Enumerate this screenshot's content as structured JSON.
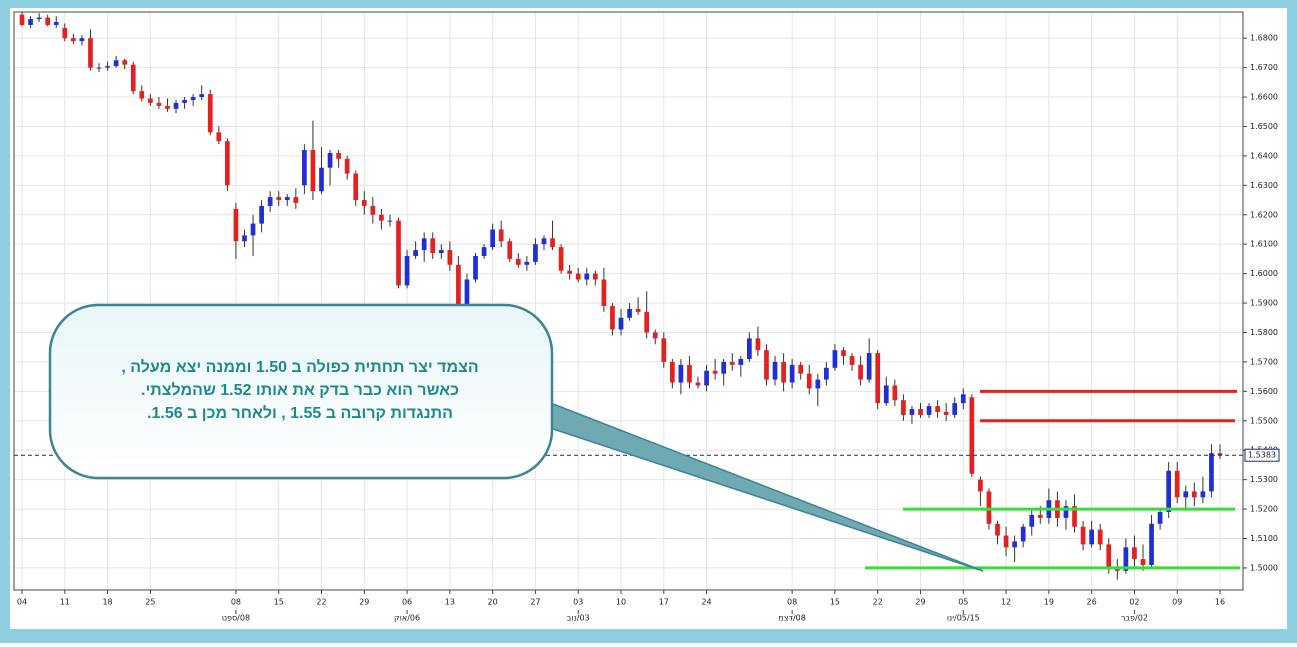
{
  "chart_data": {
    "type": "candlestick",
    "categories": [
      "04",
      null,
      null,
      null,
      null,
      "11",
      null,
      null,
      null,
      null,
      "18",
      null,
      null,
      null,
      null,
      "25",
      null,
      null,
      null,
      null,
      null,
      null,
      null,
      null,
      null,
      "08",
      null,
      null,
      null,
      null,
      "15",
      null,
      null,
      null,
      null,
      "22",
      null,
      null,
      null,
      null,
      "29",
      null,
      null,
      null,
      null,
      "06",
      null,
      null,
      null,
      null,
      "13",
      null,
      null,
      null,
      null,
      "20",
      null,
      null,
      null,
      null,
      "27",
      null,
      null,
      null,
      null,
      "03",
      null,
      null,
      null,
      null,
      "10",
      null,
      null,
      null,
      null,
      "17",
      null,
      null,
      null,
      null,
      "24",
      null,
      null,
      null,
      null,
      null,
      null,
      null,
      null,
      null,
      "08",
      null,
      null,
      null,
      null,
      "15",
      null,
      null,
      null,
      null,
      "22",
      null,
      null,
      null,
      null,
      "29",
      null,
      null,
      null,
      null,
      "05",
      null,
      null,
      null,
      null,
      "12",
      null,
      null,
      null,
      null,
      "19",
      null,
      null,
      null,
      null,
      "26",
      null,
      null,
      null,
      null,
      "02",
      null,
      null,
      null,
      null,
      "09",
      null,
      null,
      null,
      null,
      "16"
    ],
    "month_ticks": [
      {
        "value": 25,
        "label": "08/ספט"
      },
      {
        "value": 45,
        "label": "06/אוק"
      },
      {
        "value": 65,
        "label": "03/נוב"
      },
      {
        "value": 90,
        "label": "08/דצמ"
      },
      {
        "value": 110,
        "label": "05/15/ינו"
      },
      {
        "value": 130,
        "label": "02/פבר"
      }
    ],
    "open": [
      1.688,
      1.6845,
      1.6865,
      1.687,
      1.6845,
      1.6835,
      1.68,
      1.679,
      1.68,
      1.67,
      1.67,
      1.6705,
      1.6725,
      1.671,
      1.662,
      1.6595,
      1.658,
      1.657,
      1.656,
      1.658,
      1.659,
      1.66,
      1.661,
      1.648,
      1.645,
      1.622,
      1.611,
      1.613,
      1.617,
      1.623,
      1.626,
      1.625,
      1.626,
      1.63,
      1.642,
      1.628,
      1.636,
      1.641,
      1.639,
      1.634,
      1.625,
      1.623,
      1.62,
      1.618,
      1.618,
      1.596,
      1.606,
      1.608,
      1.612,
      1.607,
      1.608,
      1.603,
      1.588,
      1.598,
      1.606,
      1.609,
      1.615,
      1.611,
      1.605,
      1.603,
      1.604,
      1.61,
      1.612,
      1.609,
      1.601,
      1.6,
      1.598,
      1.6,
      1.598,
      1.589,
      1.581,
      1.585,
      1.588,
      1.587,
      1.58,
      1.578,
      1.57,
      1.563,
      1.569,
      1.563,
      1.562,
      1.567,
      1.566,
      1.57,
      1.569,
      1.571,
      1.578,
      1.574,
      1.564,
      1.57,
      1.563,
      1.569,
      1.566,
      1.561,
      1.564,
      1.568,
      1.574,
      1.572,
      1.569,
      1.564,
      1.573,
      1.556,
      1.562,
      1.557,
      1.552,
      1.554,
      1.552,
      1.555,
      1.553,
      1.552,
      1.556,
      1.558,
      1.53,
      1.526,
      1.515,
      1.511,
      1.507,
      1.509,
      1.514,
      1.518,
      1.517,
      1.523,
      1.517,
      1.521,
      1.514,
      1.508,
      1.513,
      1.508,
      1.5,
      1.499,
      1.507,
      1.503,
      1.501,
      1.515,
      1.519,
      1.533,
      1.524,
      1.526,
      1.524,
      1.526,
      1.539
    ],
    "high": [
      1.689,
      1.6875,
      1.6885,
      1.688,
      1.6875,
      1.685,
      1.6815,
      1.681,
      1.683,
      1.6715,
      1.672,
      1.674,
      1.673,
      1.672,
      1.664,
      1.661,
      1.66,
      1.6595,
      1.659,
      1.66,
      1.661,
      1.664,
      1.6625,
      1.65,
      1.646,
      1.624,
      1.615,
      1.62,
      1.625,
      1.628,
      1.628,
      1.627,
      1.629,
      1.644,
      1.652,
      1.643,
      1.642,
      1.642,
      1.64,
      1.635,
      1.628,
      1.626,
      1.622,
      1.62,
      1.619,
      1.608,
      1.611,
      1.614,
      1.614,
      1.61,
      1.611,
      1.606,
      1.6,
      1.607,
      1.61,
      1.617,
      1.618,
      1.612,
      1.607,
      1.606,
      1.612,
      1.613,
      1.618,
      1.61,
      1.603,
      1.602,
      1.602,
      1.601,
      1.602,
      1.59,
      1.588,
      1.59,
      1.592,
      1.594,
      1.581,
      1.58,
      1.571,
      1.571,
      1.572,
      1.565,
      1.569,
      1.571,
      1.571,
      1.573,
      1.572,
      1.58,
      1.582,
      1.576,
      1.572,
      1.573,
      1.571,
      1.57,
      1.569,
      1.566,
      1.57,
      1.576,
      1.575,
      1.573,
      1.572,
      1.578,
      1.574,
      1.565,
      1.564,
      1.559,
      1.555,
      1.556,
      1.556,
      1.557,
      1.556,
      1.558,
      1.561,
      1.559,
      1.531,
      1.527,
      1.516,
      1.514,
      1.511,
      1.515,
      1.52,
      1.521,
      1.527,
      1.526,
      1.523,
      1.525,
      1.516,
      1.516,
      1.515,
      1.51,
      1.503,
      1.51,
      1.511,
      1.508,
      1.518,
      1.52,
      1.536,
      1.536,
      1.528,
      1.529,
      1.531,
      1.542,
      1.542
    ],
    "low": [
      1.684,
      1.6835,
      1.6855,
      1.684,
      1.6835,
      1.679,
      1.678,
      1.6775,
      1.669,
      1.6685,
      1.669,
      1.67,
      1.6695,
      1.661,
      1.6585,
      1.657,
      1.656,
      1.655,
      1.6545,
      1.656,
      1.657,
      1.659,
      1.647,
      1.644,
      1.628,
      1.605,
      1.609,
      1.606,
      1.614,
      1.621,
      1.623,
      1.623,
      1.622,
      1.627,
      1.625,
      1.627,
      1.63,
      1.636,
      1.632,
      1.623,
      1.62,
      1.617,
      1.615,
      1.616,
      1.595,
      1.595,
      1.605,
      1.604,
      1.605,
      1.605,
      1.601,
      1.587,
      1.586,
      1.597,
      1.605,
      1.608,
      1.609,
      1.604,
      1.602,
      1.601,
      1.603,
      1.608,
      1.608,
      1.6,
      1.598,
      1.597,
      1.596,
      1.596,
      1.587,
      1.579,
      1.579,
      1.584,
      1.586,
      1.578,
      1.576,
      1.568,
      1.561,
      1.559,
      1.561,
      1.561,
      1.56,
      1.564,
      1.562,
      1.567,
      1.565,
      1.57,
      1.572,
      1.562,
      1.562,
      1.56,
      1.561,
      1.564,
      1.559,
      1.555,
      1.562,
      1.567,
      1.569,
      1.567,
      1.562,
      1.563,
      1.554,
      1.555,
      1.555,
      1.55,
      1.549,
      1.551,
      1.551,
      1.551,
      1.55,
      1.551,
      1.554,
      1.531,
      1.521,
      1.513,
      1.508,
      1.504,
      1.502,
      1.507,
      1.511,
      1.515,
      1.515,
      1.514,
      1.513,
      1.512,
      1.506,
      1.507,
      1.506,
      1.498,
      1.496,
      1.498,
      1.5,
      1.499,
      1.5,
      1.513,
      1.517,
      1.522,
      1.52,
      1.521,
      1.522,
      1.524,
      1.537
    ],
    "close": [
      1.6845,
      1.6865,
      1.687,
      1.6845,
      1.6855,
      1.68,
      1.679,
      1.68,
      1.67,
      1.67,
      1.6705,
      1.6725,
      1.671,
      1.662,
      1.6595,
      1.658,
      1.657,
      1.656,
      1.658,
      1.659,
      1.66,
      1.661,
      1.648,
      1.645,
      1.63,
      1.611,
      1.613,
      1.617,
      1.623,
      1.626,
      1.625,
      1.626,
      1.624,
      1.642,
      1.628,
      1.636,
      1.641,
      1.639,
      1.634,
      1.625,
      1.623,
      1.62,
      1.618,
      1.618,
      1.596,
      1.606,
      1.608,
      1.612,
      1.607,
      1.608,
      1.603,
      1.588,
      1.598,
      1.606,
      1.609,
      1.615,
      1.611,
      1.605,
      1.603,
      1.604,
      1.61,
      1.612,
      1.609,
      1.601,
      1.6,
      1.598,
      1.6,
      1.598,
      1.589,
      1.581,
      1.585,
      1.588,
      1.587,
      1.58,
      1.578,
      1.57,
      1.563,
      1.569,
      1.563,
      1.562,
      1.567,
      1.566,
      1.57,
      1.569,
      1.571,
      1.578,
      1.574,
      1.564,
      1.57,
      1.563,
      1.569,
      1.566,
      1.561,
      1.564,
      1.568,
      1.574,
      1.572,
      1.569,
      1.564,
      1.573,
      1.556,
      1.562,
      1.557,
      1.552,
      1.554,
      1.552,
      1.555,
      1.553,
      1.552,
      1.556,
      1.559,
      1.532,
      1.526,
      1.515,
      1.511,
      1.507,
      1.509,
      1.514,
      1.518,
      1.517,
      1.523,
      1.517,
      1.521,
      1.514,
      1.508,
      1.513,
      1.508,
      1.5,
      1.499,
      1.507,
      1.503,
      1.501,
      1.515,
      1.519,
      1.533,
      1.524,
      1.526,
      1.524,
      1.526,
      1.539,
      1.5383
    ],
    "up_color": "#1f2fd8",
    "down_color": "#e42020",
    "ylim": [
      1.4925,
      1.6889
    ],
    "yticks": [
      {
        "value": 1.5,
        "label": "1.5000"
      },
      {
        "value": 1.51,
        "label": "1.5100"
      },
      {
        "value": 1.52,
        "label": "1.5200"
      },
      {
        "value": 1.53,
        "label": "1.5300"
      },
      {
        "value": 1.54,
        "label": "1.5400"
      },
      {
        "value": 1.55,
        "label": "1.5500"
      },
      {
        "value": 1.56,
        "label": "1.5600"
      },
      {
        "value": 1.57,
        "label": "1.5700"
      },
      {
        "value": 1.58,
        "label": "1.5800"
      },
      {
        "value": 1.59,
        "label": "1.5900"
      },
      {
        "value": 1.6,
        "label": "1.6000"
      },
      {
        "value": 1.61,
        "label": "1.6100"
      },
      {
        "value": 1.62,
        "label": "1.6200"
      },
      {
        "value": 1.63,
        "label": "1.6300"
      },
      {
        "value": 1.64,
        "label": "1.6400"
      },
      {
        "value": 1.65,
        "label": "1.6500"
      },
      {
        "value": 1.66,
        "label": "1.6600"
      },
      {
        "value": 1.67,
        "label": "1.6700"
      },
      {
        "value": 1.68,
        "label": "1.6800"
      }
    ],
    "grid": true,
    "current_price": {
      "value": 1.5383,
      "label": "1.5383",
      "color": "#1a237e"
    },
    "levels": [
      {
        "value": 1.56,
        "color": "#e42020"
      },
      {
        "value": 1.55,
        "color": "#e42020"
      },
      {
        "value": 1.52,
        "color": "#33e033"
      },
      {
        "value": 1.5,
        "color": "#33e033"
      }
    ],
    "annotation": {
      "lines": [
        "הצמד יצר תחתית כפולה ב 1.50 וממנה יצא מעלה ,",
        "כאשר הוא כבר בדק את אותו 1.52 שהמלצתי.",
        "התנגדות קרובה ב 1.55 , ולאחר מכן ב 1.56."
      ]
    }
  }
}
